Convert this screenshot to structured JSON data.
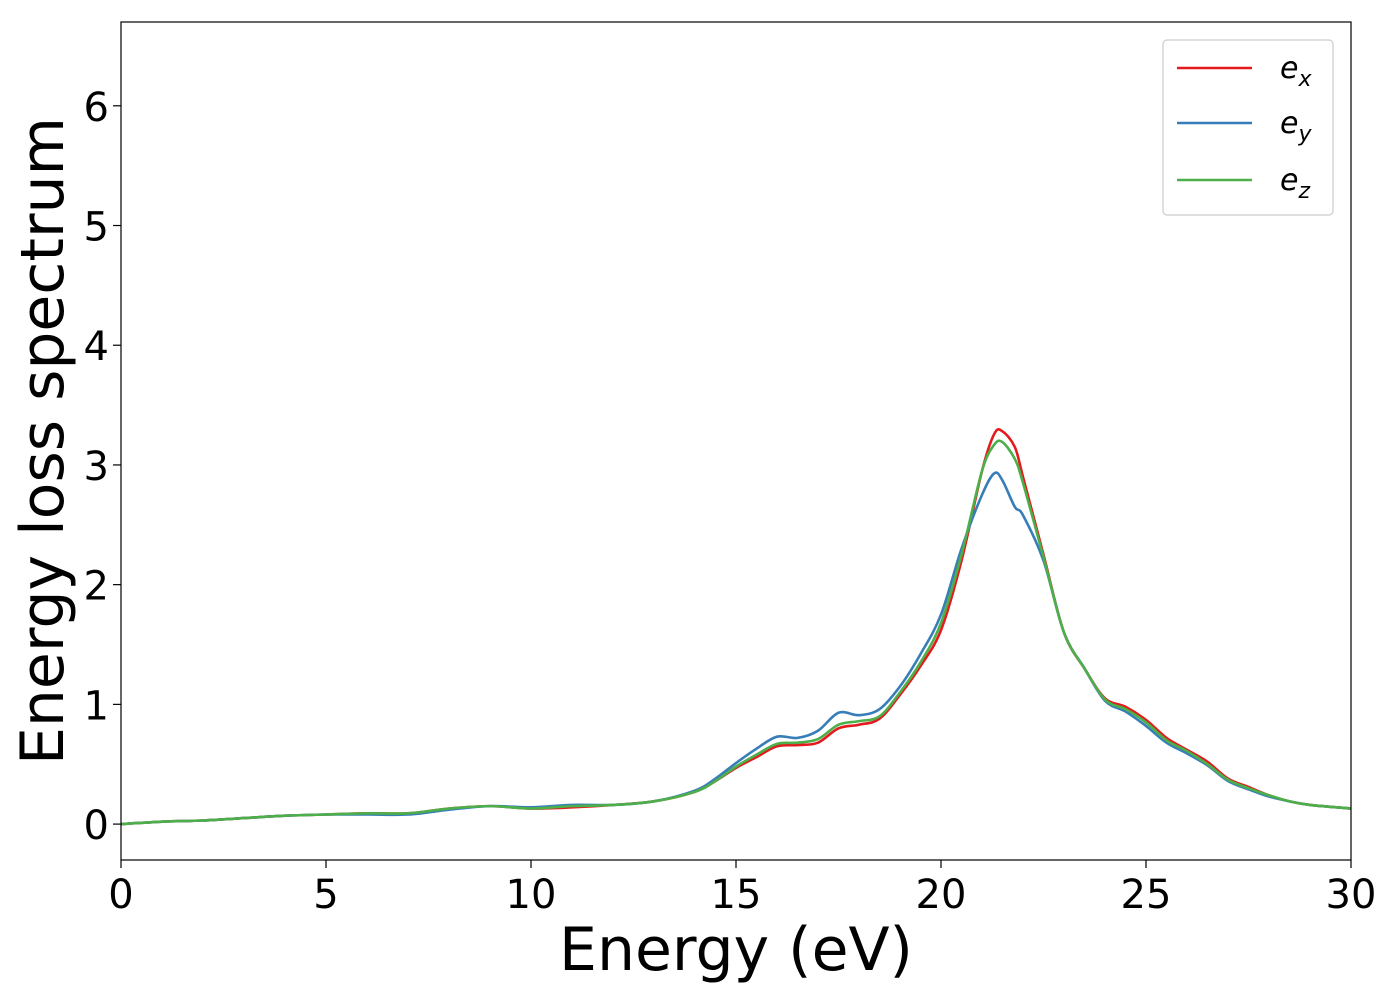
{
  "chart_data": {
    "type": "line",
    "title": "",
    "xlabel": "Energy (eV)",
    "ylabel": "Energy loss spectrum",
    "xlim": [
      0,
      30
    ],
    "ylim": [
      -0.3,
      6.7
    ],
    "xticks": [
      0,
      5,
      10,
      15,
      20,
      25,
      30
    ],
    "yticks": [
      0,
      1,
      2,
      3,
      4,
      5,
      6
    ],
    "grid": false,
    "legend_position": "top-right",
    "x": [
      0,
      1,
      2,
      3,
      4,
      5,
      6,
      7,
      8,
      9,
      10,
      11,
      12,
      13,
      14,
      14.5,
      15,
      15.5,
      16,
      16.5,
      17,
      17.5,
      18,
      18.5,
      19,
      19.5,
      20,
      20.5,
      21,
      21.3,
      21.5,
      21.8,
      22,
      22.5,
      23,
      23.5,
      24,
      24.5,
      25,
      25.5,
      26,
      26.5,
      27,
      27.5,
      28,
      28.5,
      29,
      30
    ],
    "series": [
      {
        "name": "e_x",
        "color": "#e41a1c",
        "values": [
          0.0,
          0.02,
          0.03,
          0.05,
          0.07,
          0.08,
          0.09,
          0.09,
          0.13,
          0.15,
          0.13,
          0.14,
          0.16,
          0.19,
          0.27,
          0.36,
          0.47,
          0.56,
          0.65,
          0.66,
          0.68,
          0.8,
          0.83,
          0.88,
          1.08,
          1.32,
          1.62,
          2.2,
          2.95,
          3.26,
          3.28,
          3.15,
          2.9,
          2.25,
          1.6,
          1.3,
          1.05,
          0.98,
          0.87,
          0.72,
          0.62,
          0.52,
          0.38,
          0.31,
          0.24,
          0.19,
          0.16,
          0.13
        ]
      },
      {
        "name": "e_y",
        "color": "#377eb8",
        "values": [
          0.0,
          0.02,
          0.03,
          0.05,
          0.07,
          0.08,
          0.08,
          0.08,
          0.12,
          0.15,
          0.14,
          0.16,
          0.16,
          0.19,
          0.28,
          0.38,
          0.51,
          0.63,
          0.73,
          0.72,
          0.78,
          0.93,
          0.91,
          0.96,
          1.15,
          1.42,
          1.75,
          2.3,
          2.75,
          2.93,
          2.87,
          2.65,
          2.58,
          2.2,
          1.6,
          1.3,
          1.03,
          0.94,
          0.82,
          0.68,
          0.59,
          0.49,
          0.36,
          0.29,
          0.23,
          0.19,
          0.16,
          0.13
        ]
      },
      {
        "name": "e_z",
        "color": "#4daf4a",
        "values": [
          0.0,
          0.02,
          0.03,
          0.05,
          0.07,
          0.08,
          0.09,
          0.09,
          0.13,
          0.15,
          0.13,
          0.15,
          0.16,
          0.19,
          0.27,
          0.36,
          0.48,
          0.58,
          0.67,
          0.68,
          0.71,
          0.83,
          0.86,
          0.9,
          1.1,
          1.35,
          1.68,
          2.25,
          2.95,
          3.17,
          3.19,
          3.05,
          2.85,
          2.23,
          1.6,
          1.3,
          1.04,
          0.96,
          0.85,
          0.7,
          0.61,
          0.5,
          0.37,
          0.3,
          0.24,
          0.19,
          0.16,
          0.13
        ]
      }
    ]
  },
  "legend": {
    "items": [
      {
        "base": "e",
        "sub": "x"
      },
      {
        "base": "e",
        "sub": "y"
      },
      {
        "base": "e",
        "sub": "z"
      }
    ]
  }
}
